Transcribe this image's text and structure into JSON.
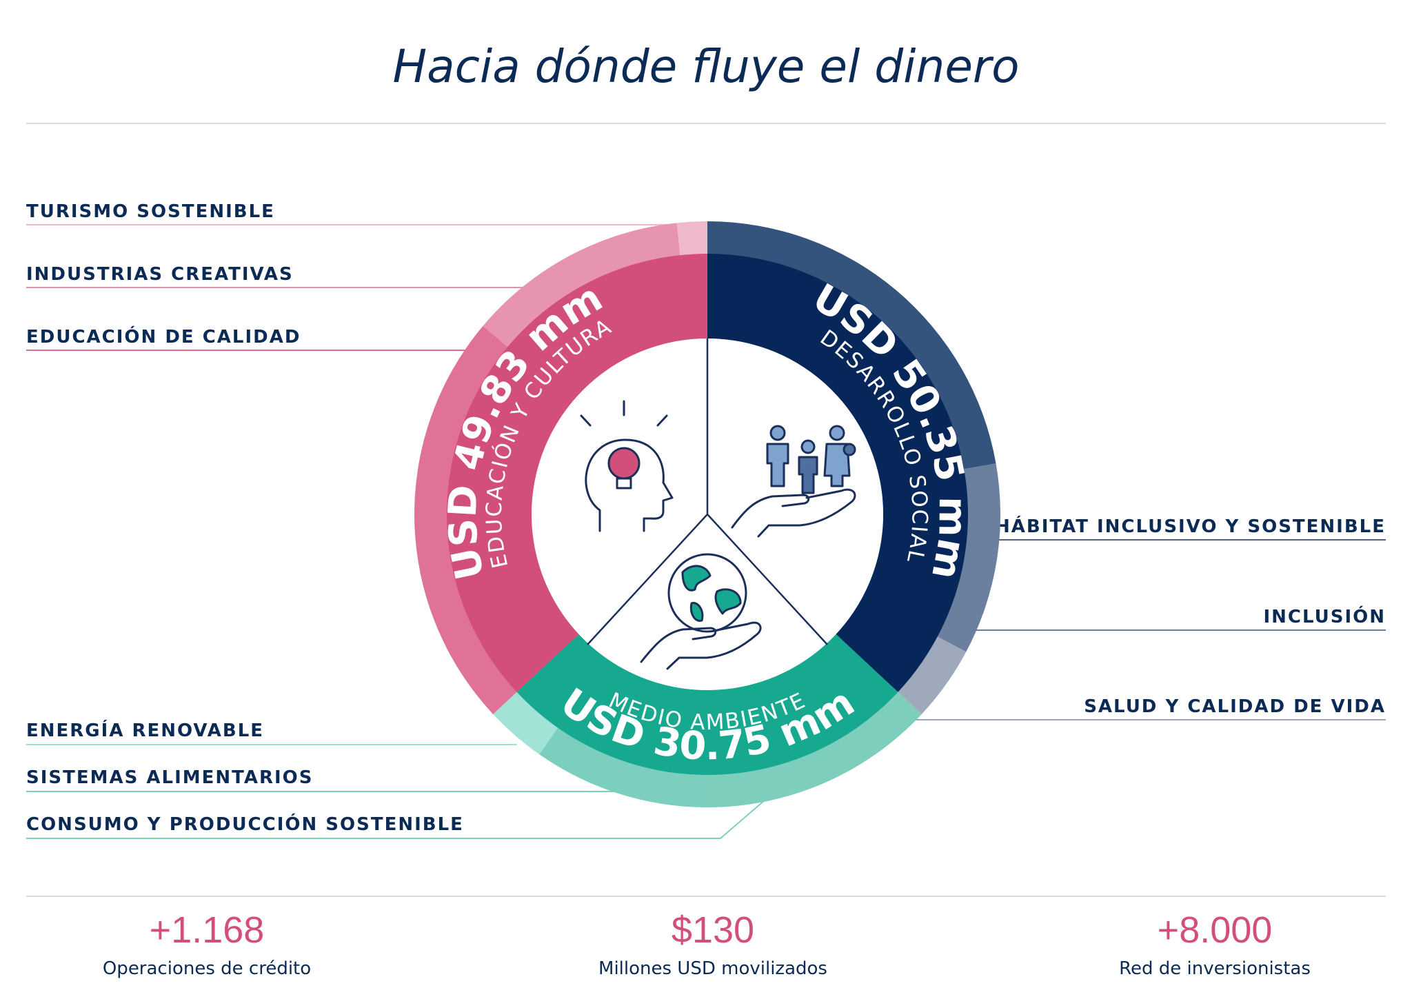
{
  "title": "Hacia dónde fluye el dinero",
  "chart_data": {
    "type": "pie",
    "slices": [
      {
        "name": "EDUCACIÓN Y CULTURA",
        "amount_label": "USD 49.83 mm",
        "value": 49.83,
        "color": "#d34f7b"
      },
      {
        "name": "DESARROLLO SOCIAL",
        "amount_label": "USD 50.35 mm",
        "value": 50.35,
        "color": "#07275a"
      },
      {
        "name": "MEDIO AMBIENTE",
        "amount_label": "USD 30.75 mm",
        "value": 30.75,
        "color": "#17a990"
      }
    ],
    "subcategories": {
      "left_top": [
        "TURISMO SOSTENIBLE",
        "INDUSTRIAS CREATIVAS",
        "EDUCACIÓN DE CALIDAD"
      ],
      "right": [
        "HÁBITAT INCLUSIVO Y SOSTENIBLE",
        "INCLUSIÓN",
        "SALUD Y CALIDAD DE VIDA"
      ],
      "left_bottom": [
        "ENERGÍA RENOVABLE",
        "SISTEMAS ALIMENTARIOS",
        "CONSUMO Y PRODUCCIÓN SOSTENIBLE"
      ]
    },
    "icons": [
      "lightbulb-head-icon",
      "family-in-hand-icon",
      "globe-in-hand-icon"
    ]
  },
  "stats": [
    {
      "value": "+1.168",
      "label": "Operaciones de crédito"
    },
    {
      "value": "$130",
      "label": "Millones USD movilizados"
    },
    {
      "value": "+8.000",
      "label": "Red de inversionistas"
    }
  ]
}
